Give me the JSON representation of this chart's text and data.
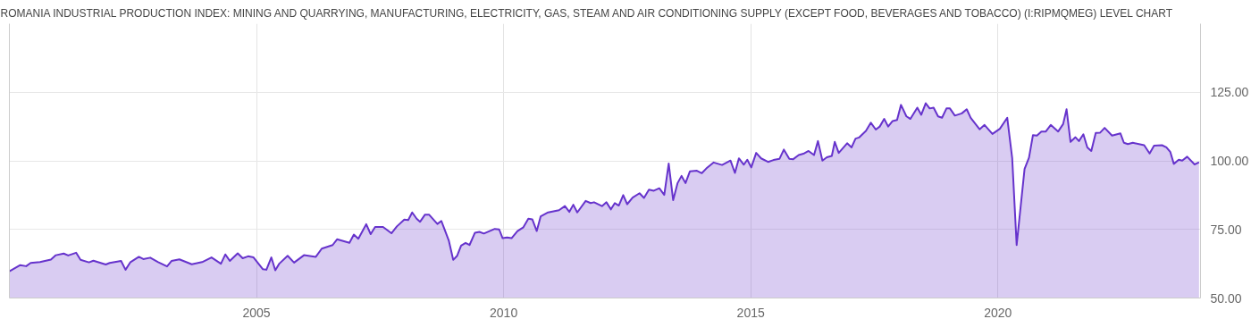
{
  "chart_data": {
    "type": "area",
    "title": "ROMANIA INDUSTRIAL PRODUCTION INDEX: MINING AND QUARRYING, MANUFACTURING, ELECTRICITY, GAS, STEAM AND AIR CONDITIONING SUPPLY (EXCEPT FOOD, BEVERAGES AND TOBACCO) (I:RIPMQMEG) LEVEL CHART",
    "x": [
      2000.0,
      2000.22,
      2000.34,
      2000.43,
      2000.62,
      2000.84,
      2000.94,
      2001.1,
      2001.19,
      2001.35,
      2001.44,
      2001.61,
      2001.7,
      2001.95,
      2002.03,
      2002.26,
      2002.35,
      2002.45,
      2002.62,
      2002.71,
      2002.85,
      2003.01,
      2003.19,
      2003.28,
      2003.44,
      2003.69,
      2003.9,
      2004.09,
      2004.28,
      2004.37,
      2004.46,
      2004.62,
      2004.72,
      2004.83,
      2004.94,
      2005.13,
      2005.2,
      2005.3,
      2005.38,
      2005.46,
      2005.63,
      2005.76,
      2005.96,
      2006.2,
      2006.32,
      2006.54,
      2006.63,
      2006.88,
      2006.97,
      2007.06,
      2007.22,
      2007.31,
      2007.4,
      2007.56,
      2007.73,
      2007.84,
      2007.99,
      2008.07,
      2008.15,
      2008.24,
      2008.31,
      2008.41,
      2008.49,
      2008.66,
      2008.74,
      2008.89,
      2008.98,
      2009.06,
      2009.14,
      2009.23,
      2009.31,
      2009.42,
      2009.51,
      2009.6,
      2009.82,
      2009.91,
      2009.98,
      2010.07,
      2010.16,
      2010.28,
      2010.4,
      2010.5,
      2010.58,
      2010.67,
      2010.75,
      2010.9,
      2011.12,
      2011.24,
      2011.33,
      2011.41,
      2011.49,
      2011.66,
      2011.76,
      2011.83,
      2011.99,
      2012.08,
      2012.17,
      2012.25,
      2012.33,
      2012.42,
      2012.5,
      2012.61,
      2012.75,
      2012.84,
      2012.94,
      2013.04,
      2013.15,
      2013.25,
      2013.34,
      2013.43,
      2013.52,
      2013.6,
      2013.68,
      2013.77,
      2013.91,
      2014.01,
      2014.1,
      2014.25,
      2014.42,
      2014.59,
      2014.68,
      2014.76,
      2014.86,
      2014.93,
      2015.01,
      2015.11,
      2015.21,
      2015.35,
      2015.46,
      2015.58,
      2015.67,
      2015.78,
      2015.86,
      2015.97,
      2016.08,
      2016.17,
      2016.28,
      2016.36,
      2016.45,
      2016.54,
      2016.64,
      2016.7,
      2016.78,
      2016.95,
      2017.04,
      2017.12,
      2017.19,
      2017.33,
      2017.43,
      2017.53,
      2017.61,
      2017.7,
      2017.78,
      2017.87,
      2017.96,
      2018.04,
      2018.15,
      2018.23,
      2018.37,
      2018.45,
      2018.54,
      2018.62,
      2018.7,
      2018.79,
      2018.87,
      2018.96,
      2019.03,
      2019.13,
      2019.27,
      2019.37,
      2019.45,
      2019.63,
      2019.73,
      2019.89,
      2020.04,
      2020.19,
      2020.29,
      2020.38,
      2020.54,
      2020.63,
      2020.71,
      2020.79,
      2020.88,
      2020.97,
      2021.07,
      2021.22,
      2021.32,
      2021.39,
      2021.47,
      2021.57,
      2021.64,
      2021.73,
      2021.81,
      2021.89,
      2021.98,
      2022.07,
      2022.16,
      2022.31,
      2022.48,
      2022.55,
      2022.63,
      2022.73,
      2022.96,
      2023.07,
      2023.16,
      2023.32,
      2023.41,
      2023.49,
      2023.56,
      2023.66,
      2023.73,
      2023.83,
      2023.98,
      2024.07
    ],
    "series": [
      {
        "color": "#6633cc",
        "values": [
          59.7,
          62.0,
          61.6,
          62.8,
          63.1,
          64.0,
          65.6,
          66.2,
          65.5,
          66.5,
          63.9,
          63.0,
          63.6,
          62.2,
          62.8,
          63.5,
          60.3,
          63.1,
          65.0,
          64.2,
          64.7,
          63.1,
          61.5,
          63.5,
          64.1,
          62.3,
          63.1,
          64.8,
          62.5,
          65.9,
          63.5,
          66.3,
          64.5,
          65.2,
          64.8,
          60.5,
          60.3,
          64.8,
          60.1,
          62.5,
          65.4,
          62.9,
          65.6,
          65.0,
          68.0,
          69.3,
          71.4,
          70.1,
          73.1,
          71.6,
          76.9,
          73.3,
          75.9,
          75.9,
          73.6,
          76.1,
          78.6,
          78.4,
          81.2,
          78.9,
          77.8,
          80.4,
          80.4,
          77.0,
          78.1,
          71.0,
          63.9,
          65.4,
          69.1,
          70.1,
          69.3,
          73.8,
          74.1,
          73.5,
          75.2,
          75.0,
          71.8,
          72.1,
          71.8,
          74.4,
          75.8,
          78.9,
          78.7,
          74.4,
          79.8,
          81.2,
          82.0,
          83.5,
          81.4,
          84.0,
          81.2,
          85.4,
          84.6,
          84.9,
          83.5,
          84.9,
          82.3,
          84.6,
          83.7,
          87.5,
          84.2,
          86.6,
          88.2,
          86.5,
          89.5,
          89.1,
          90.0,
          87.6,
          99.0,
          85.7,
          91.9,
          94.5,
          91.9,
          96.2,
          96.4,
          95.5,
          97.2,
          99.4,
          98.5,
          100.1,
          95.6,
          100.9,
          98.6,
          100.4,
          97.6,
          102.9,
          100.9,
          99.6,
          100.3,
          100.7,
          104.1,
          100.7,
          100.6,
          102.1,
          102.7,
          103.6,
          102.1,
          107.2,
          100.1,
          101.3,
          101.8,
          106.9,
          102.9,
          106.4,
          104.9,
          108.1,
          108.5,
          110.9,
          113.9,
          111.4,
          112.5,
          115.3,
          112.5,
          114.5,
          114.9,
          120.4,
          116.2,
          115.3,
          119.4,
          116.8,
          121.0,
          119.1,
          119.4,
          116.2,
          115.7,
          119.1,
          119.1,
          116.5,
          117.3,
          118.8,
          115.7,
          111.5,
          113.1,
          109.8,
          111.7,
          115.7,
          100.9,
          69.3,
          97.0,
          101.2,
          109.4,
          109.2,
          110.7,
          110.7,
          113.1,
          110.7,
          113.4,
          118.8,
          106.9,
          108.6,
          107.2,
          109.7,
          104.9,
          103.6,
          110.2,
          110.3,
          112.0,
          109.2,
          110.0,
          106.6,
          106.1,
          106.6,
          105.7,
          102.7,
          105.5,
          105.7,
          104.9,
          103.2,
          98.9,
          100.4,
          100.1,
          101.5,
          98.7,
          99.5
        ]
      }
    ],
    "xlim": [
      2000.0,
      2024.1
    ],
    "xticks": [
      2005,
      2010,
      2015,
      2020
    ],
    "ylim": [
      50,
      150
    ],
    "yticks": [
      {
        "value": 50,
        "label": "50.00"
      },
      {
        "value": 75,
        "label": "75.00"
      },
      {
        "value": 100,
        "label": "100.00"
      },
      {
        "value": 125,
        "label": "125.00"
      }
    ],
    "grid": true
  }
}
